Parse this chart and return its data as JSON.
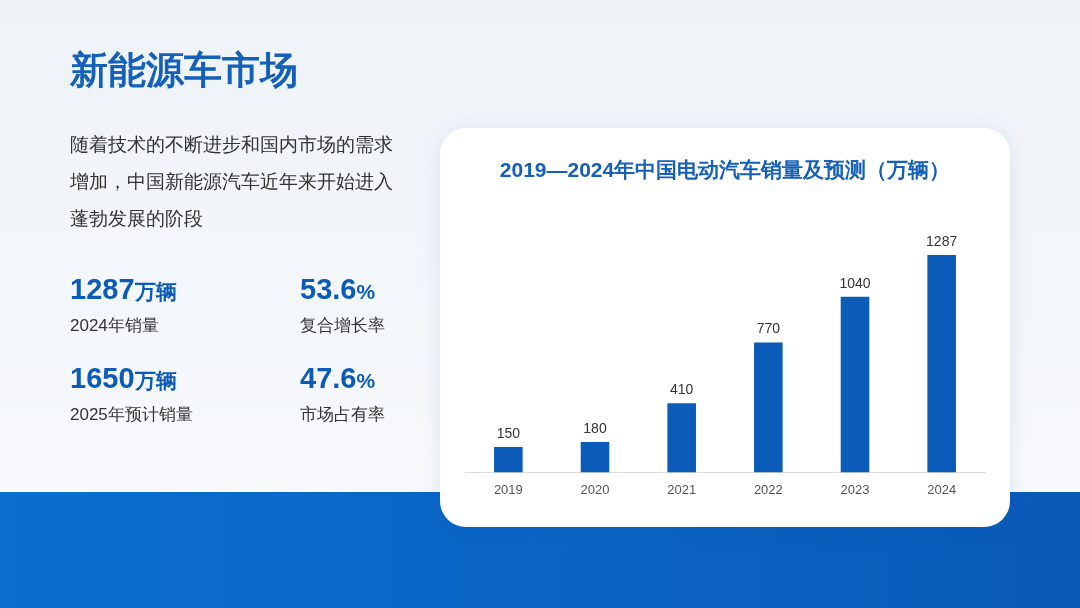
{
  "chart_data": [
    {
      "type": "other",
      "title": "新能源车市场",
      "annotations": [
        "随着技术的不断进步和国内市场的需求增加，中国新能源汽车近年来开始进入蓬勃发展的阶段",
        "1287万辆",
        "2024年销量",
        "53.6%",
        "复合增长率",
        "1650万辆",
        "2025年预计销量",
        "47.6%",
        "市场占有率"
      ]
    },
    {
      "type": "bar",
      "title": "2019—2024年中国电动汽车销量及预测（万辆）",
      "categories": [
        "2019",
        "2020",
        "2021",
        "2022",
        "2023",
        "2024"
      ],
      "values": [
        150,
        180,
        410,
        770,
        1040,
        1287
      ],
      "color": "#0b5cb8",
      "data_labels": true,
      "grid": false,
      "legend": false
    }
  ]
}
